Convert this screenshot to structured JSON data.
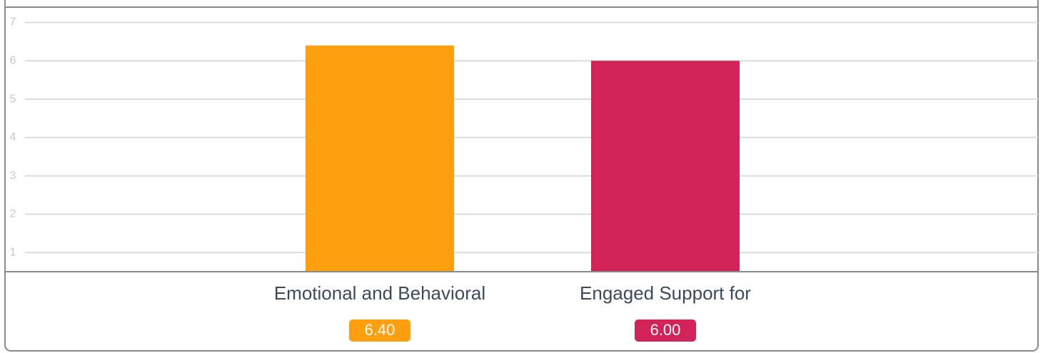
{
  "chart_data": {
    "type": "bar",
    "categories": [
      "Emotional and Behavioral",
      "Engaged Support for"
    ],
    "values": [
      6.4,
      6.0
    ],
    "value_labels": [
      "6.40",
      "6.00"
    ],
    "colors": [
      "#fd9f0e",
      "#d22458"
    ],
    "ylim": [
      0.5,
      7.4
    ],
    "yticks": [
      1,
      2,
      3,
      4,
      5,
      6,
      7
    ],
    "grid": true
  }
}
